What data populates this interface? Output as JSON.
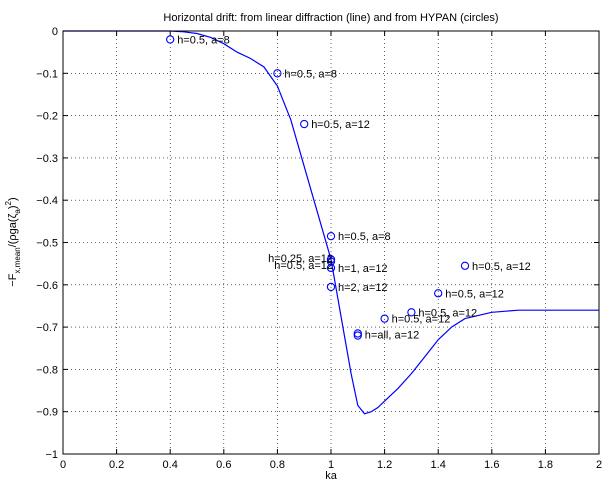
{
  "chart_data": {
    "type": "line",
    "title": "Horizontal drift: from linear diffraction (line) and from HYPAN (circles)",
    "xlabel": "ka",
    "ylabel": "-F_{x,mean}/(ρga(ζ_a)^2)",
    "xlim": [
      0,
      2
    ],
    "ylim": [
      -1,
      0
    ],
    "xticks": [
      0,
      0.2,
      0.4,
      0.6,
      0.8,
      1,
      1.2,
      1.4,
      1.6,
      1.8,
      2
    ],
    "xtick_labels": [
      "0",
      "0.2",
      "0.4",
      "0.6",
      "0.8",
      "1",
      "1.2",
      "1.4",
      "1.6",
      "1.8",
      "2"
    ],
    "yticks": [
      -1,
      -0.9,
      -0.8,
      -0.7,
      -0.6,
      -0.5,
      -0.4,
      -0.3,
      -0.2,
      -0.1,
      0
    ],
    "ytick_labels": [
      "−1",
      "−0.9",
      "−0.8",
      "−0.7",
      "−0.6",
      "−0.5",
      "−0.4",
      "−0.3",
      "−0.2",
      "−0.1",
      "0"
    ],
    "grid": true,
    "line_color": "#0000ff",
    "series": [
      {
        "style": "line",
        "x": [
          0,
          0.1,
          0.2,
          0.3,
          0.4,
          0.45,
          0.5,
          0.55,
          0.6,
          0.65,
          0.7,
          0.75,
          0.8,
          0.85,
          0.9,
          0.95,
          1.0,
          1.025,
          1.05,
          1.075,
          1.1,
          1.125,
          1.15,
          1.175,
          1.2,
          1.25,
          1.3,
          1.35,
          1.4,
          1.45,
          1.5,
          1.6,
          1.7,
          1.8,
          1.9,
          2.0
        ],
        "y": [
          0,
          0,
          0,
          0,
          0,
          -0.002,
          -0.006,
          -0.015,
          -0.03,
          -0.05,
          -0.065,
          -0.085,
          -0.13,
          -0.21,
          -0.32,
          -0.43,
          -0.54,
          -0.63,
          -0.72,
          -0.81,
          -0.885,
          -0.905,
          -0.9,
          -0.89,
          -0.875,
          -0.845,
          -0.81,
          -0.77,
          -0.73,
          -0.7,
          -0.68,
          -0.665,
          -0.66,
          -0.66,
          -0.66,
          -0.66
        ]
      },
      {
        "style": "markers",
        "x": [
          0.4,
          0.8,
          0.9,
          1.0,
          1.0,
          1.0,
          1.0,
          1.0,
          1.1,
          1.1,
          1.2,
          1.3,
          1.4,
          1.5
        ],
        "y": [
          -0.02,
          -0.1,
          -0.22,
          -0.485,
          -0.54,
          -0.545,
          -0.56,
          -0.605,
          -0.715,
          -0.72,
          -0.68,
          -0.665,
          -0.62,
          -0.555
        ]
      }
    ],
    "annotations": [
      {
        "text": "h=0.5, a=8",
        "x": 0.4,
        "y": -0.02,
        "side": "right"
      },
      {
        "text": "h=0.5, a=8",
        "x": 0.8,
        "y": -0.1,
        "side": "right"
      },
      {
        "text": "h=0.5, a=12",
        "x": 0.9,
        "y": -0.22,
        "side": "right"
      },
      {
        "text": "h=0.5, a=8",
        "x": 1.0,
        "y": -0.485,
        "side": "right"
      },
      {
        "text": "h=0.25, a=12",
        "x": 1.0,
        "y": -0.537,
        "side": "left"
      },
      {
        "text": "h=0.5, a=12",
        "x": 1.0,
        "y": -0.553,
        "side": "left"
      },
      {
        "text": "h=1, a=12",
        "x": 1.0,
        "y": -0.56,
        "side": "right"
      },
      {
        "text": "h=2, a=12",
        "x": 1.0,
        "y": -0.605,
        "side": "right"
      },
      {
        "text": "h=all, a=12",
        "x": 1.1,
        "y": -0.718,
        "side": "right"
      },
      {
        "text": "h=0.5, a=12",
        "x": 1.2,
        "y": -0.68,
        "side": "right"
      },
      {
        "text": "h=0.5, a=12",
        "x": 1.3,
        "y": -0.665,
        "side": "right"
      },
      {
        "text": "h=0.5, a=12",
        "x": 1.4,
        "y": -0.62,
        "side": "right"
      },
      {
        "text": "h=0.5, a=12",
        "x": 1.5,
        "y": -0.555,
        "side": "right"
      }
    ]
  }
}
